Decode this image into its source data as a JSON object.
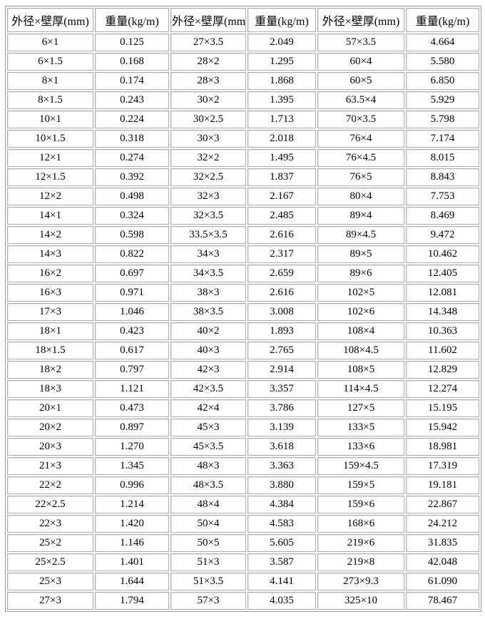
{
  "table": {
    "headers": [
      {
        "label": "外径×壁厚(mm)"
      },
      {
        "label": "重量(kg/m)"
      },
      {
        "label": "外径×壁厚(mm)"
      },
      {
        "label": "重量(kg/m)"
      },
      {
        "label": "外径×壁厚(mm)"
      },
      {
        "label": "重量(kg/m)"
      }
    ],
    "rows": [
      [
        "6×1",
        "0.125",
        "27×3.5",
        "2.049",
        "57×3.5",
        "4.664"
      ],
      [
        "6×1.5",
        "0.168",
        "28×2",
        "1.295",
        "60×4",
        "5.580"
      ],
      [
        "8×1",
        "0.174",
        "28×3",
        "1.868",
        "60×5",
        "6.850"
      ],
      [
        "8×1.5",
        "0.243",
        "30×2",
        "1.395",
        "63.5×4",
        "5.929"
      ],
      [
        "10×1",
        "0.224",
        "30×2.5",
        "1.713",
        "70×3.5",
        "5.798"
      ],
      [
        "10×1.5",
        "0.318",
        "30×3",
        "2.018",
        "76×4",
        "7.174"
      ],
      [
        "12×1",
        "0.274",
        "32×2",
        "1.495",
        "76×4.5",
        "8.015"
      ],
      [
        "12×1.5",
        "0.392",
        "32×2.5",
        "1.837",
        "76×5",
        "8.843"
      ],
      [
        "12×2",
        "0.498",
        "32×3",
        "2.167",
        "80×4",
        "7.753"
      ],
      [
        "14×1",
        "0.324",
        "32×3.5",
        "2.485",
        "89×4",
        "8.469"
      ],
      [
        "14×2",
        "0.598",
        "33.5×3.5",
        "2.616",
        "89×4.5",
        "9.472"
      ],
      [
        "14×3",
        "0.822",
        "34×3",
        "2.317",
        "89×5",
        "10.462"
      ],
      [
        "16×2",
        "0.697",
        "34×3.5",
        "2.659",
        "89×6",
        "12.405"
      ],
      [
        "16×3",
        "0.971",
        "38×3",
        "2.616",
        "102×5",
        "12.081"
      ],
      [
        "17×3",
        "1.046",
        "38×3.5",
        "3.008",
        "102×6",
        "14.348"
      ],
      [
        "18×1",
        "0.423",
        "40×2",
        "1.893",
        "108×4",
        "10.363"
      ],
      [
        "18×1.5",
        "0.617",
        "40×3",
        "2.765",
        "108×4.5",
        "11.602"
      ],
      [
        "18×2",
        "0.797",
        "42×3",
        "2.914",
        "108×5",
        "12.829"
      ],
      [
        "18×3",
        "1.121",
        "42×3.5",
        "3.357",
        "114×4.5",
        "12.274"
      ],
      [
        "20×1",
        "0.473",
        "42×4",
        "3.786",
        "127×5",
        "15.195"
      ],
      [
        "20×2",
        "0.897",
        "45×3",
        "3.139",
        "133×5",
        "15.942"
      ],
      [
        "20×3",
        "1.270",
        "45×3.5",
        "3.618",
        "133×6",
        "18.981"
      ],
      [
        "21×3",
        "1.345",
        "48×3",
        "3.363",
        "159×4.5",
        "17.319"
      ],
      [
        "22×2",
        "0.996",
        "48×3.5",
        "3.880",
        "159×5",
        "19.181"
      ],
      [
        "22×2.5",
        "1.214",
        "48×4",
        "4.384",
        "159×6",
        "22.867"
      ],
      [
        "22×3",
        "1.420",
        "50×4",
        "4.583",
        "168×6",
        "24.212"
      ],
      [
        "25×2",
        "1.146",
        "50×5",
        "5.605",
        "219×6",
        "31.835"
      ],
      [
        "25×2.5",
        "1.401",
        "51×3",
        "3.587",
        "219×8",
        "42.048"
      ],
      [
        "25×3",
        "1.644",
        "51×3.5",
        "4.141",
        "273×9.3",
        "61.090"
      ],
      [
        "27×3",
        "1.794",
        "57×3",
        "4.035",
        "325×10",
        "78.467"
      ]
    ]
  }
}
